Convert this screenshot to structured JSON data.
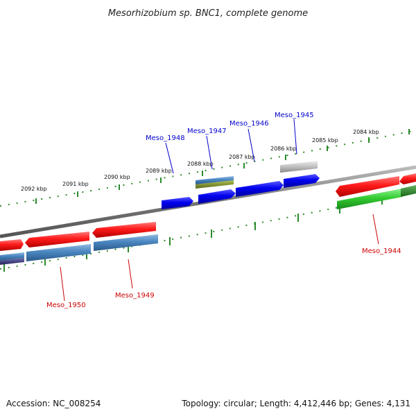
{
  "title": "Mesorhizobium sp. BNC1, complete genome",
  "footer": {
    "accession": "Accession: NC_008254",
    "summary": "Topology: circular; Length: 4,412,446 bp; Genes: 4,131"
  },
  "scale_labels": [
    "2084 kbp",
    "2085 kbp",
    "2086 kbp",
    "2087 kbp",
    "2088 kbp",
    "2089 kbp",
    "2090 kbp",
    "2091 kbp",
    "2092 kbp"
  ],
  "gene_labels_top": [
    "Meso_1948",
    "Meso_1947",
    "Meso_1946",
    "Meso_1945"
  ],
  "gene_labels_bottom": [
    "Meso_1950",
    "Meso_1949",
    "Meso_1944"
  ],
  "colors": {
    "top_label": "#0000cc",
    "bottom_label": "#cc0000",
    "backbone": "#888888",
    "ticks": "#2a8a2a",
    "red": "#e60000",
    "blue": "#0000dd",
    "steel": "#3f7fb5",
    "green": "#33c433",
    "gray": "#bbbbbb",
    "olive": "#7a8a2a",
    "navy": "#33337a"
  }
}
